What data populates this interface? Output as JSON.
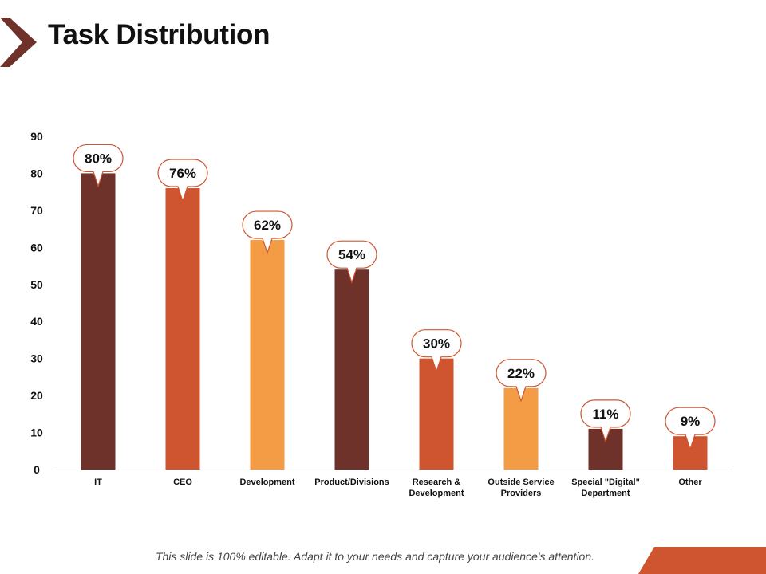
{
  "slide": {
    "title": "Task Distribution",
    "footer_note": "This slide is 100% editable.  Adapt it to your needs and capture your audience's attention."
  },
  "colors": {
    "dark": "#6e322b",
    "mid": "#cf5530",
    "light": "#f39b45",
    "axis": "#d9d9d9",
    "callout_border": "#cf5530"
  },
  "chart_data": {
    "type": "bar",
    "title": "",
    "xlabel": "",
    "ylabel": "",
    "ylim": [
      0,
      90
    ],
    "yticks": [
      0,
      10,
      20,
      30,
      40,
      50,
      60,
      70,
      80,
      90
    ],
    "categories": [
      "IT",
      "CEO",
      "Development",
      "Product/Divisions",
      "Research & Development",
      "Outside Service Providers",
      "Special \"Digital\" Department",
      "Other"
    ],
    "category_lines": [
      [
        "IT"
      ],
      [
        "CEO"
      ],
      [
        "Development"
      ],
      [
        "Product/Divisions"
      ],
      [
        "Research &",
        "Development"
      ],
      [
        "Outside Service",
        "Providers"
      ],
      [
        "Special \"Digital\"",
        "Department"
      ],
      [
        "Other"
      ]
    ],
    "values": [
      80,
      76,
      62,
      54,
      30,
      22,
      11,
      9
    ],
    "data_labels": [
      "80%",
      "76%",
      "62%",
      "54%",
      "30%",
      "22%",
      "11%",
      "9%"
    ],
    "bar_color_keys": [
      "dark",
      "mid",
      "light",
      "dark",
      "mid",
      "light",
      "dark",
      "mid"
    ],
    "grid": false,
    "legend": "none"
  }
}
